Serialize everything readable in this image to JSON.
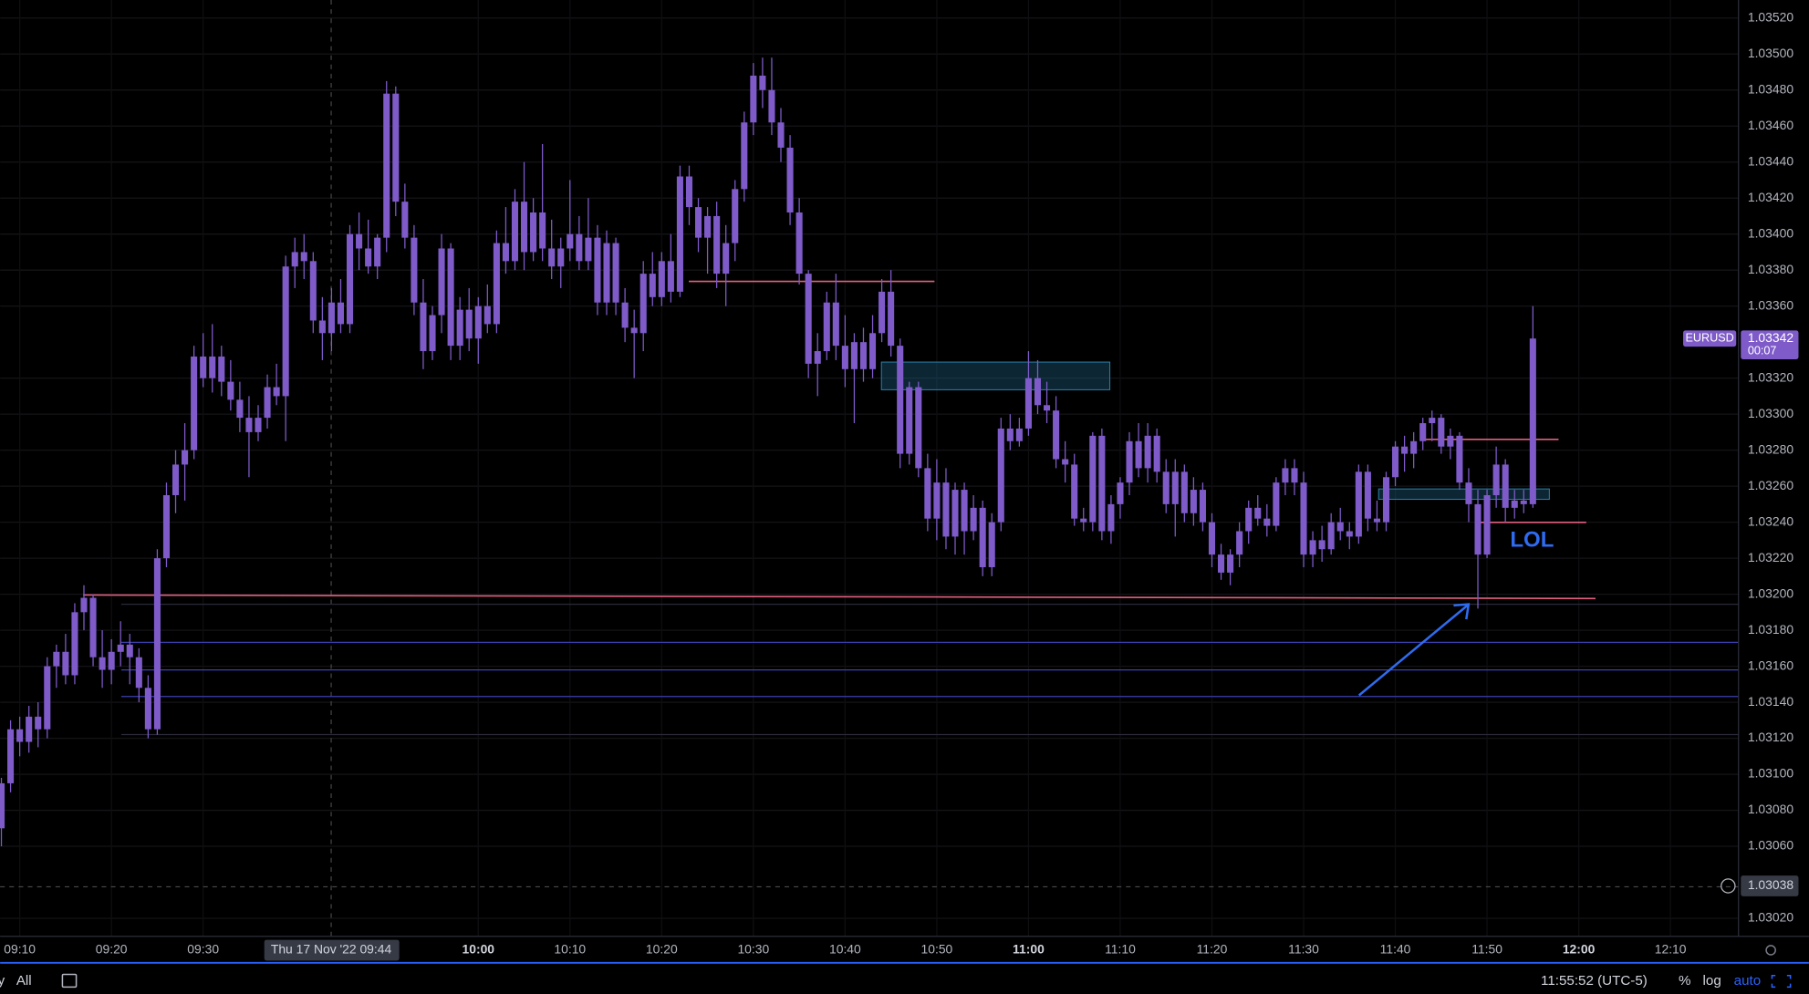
{
  "chart_data": {
    "type": "candlestick",
    "symbol": "EURUSD",
    "color": "#7e5bc9",
    "grid": true,
    "ylim": [
      1.0301,
      1.0353
    ],
    "yticks": [
      {
        "value": 1.0352,
        "label": "1.03520"
      },
      {
        "value": 1.035,
        "label": "1.03500"
      },
      {
        "value": 1.0348,
        "label": "1.03480"
      },
      {
        "value": 1.0346,
        "label": "1.03460"
      },
      {
        "value": 1.0344,
        "label": "1.03440"
      },
      {
        "value": 1.0342,
        "label": "1.03420"
      },
      {
        "value": 1.034,
        "label": "1.03400"
      },
      {
        "value": 1.0338,
        "label": "1.03380"
      },
      {
        "value": 1.0336,
        "label": "1.03360"
      },
      {
        "value": 1.0332,
        "label": "1.03320"
      },
      {
        "value": 1.033,
        "label": "1.03300"
      },
      {
        "value": 1.0328,
        "label": "1.03280"
      },
      {
        "value": 1.0326,
        "label": "1.03260"
      },
      {
        "value": 1.0324,
        "label": "1.03240"
      },
      {
        "value": 1.0322,
        "label": "1.03220"
      },
      {
        "value": 1.032,
        "label": "1.03200"
      },
      {
        "value": 1.0318,
        "label": "1.03180"
      },
      {
        "value": 1.0316,
        "label": "1.03160"
      },
      {
        "value": 1.0314,
        "label": "1.03140"
      },
      {
        "value": 1.0312,
        "label": "1.03120"
      },
      {
        "value": 1.031,
        "label": "1.03100"
      },
      {
        "value": 1.0308,
        "label": "1.03080"
      },
      {
        "value": 1.0306,
        "label": "1.03060"
      },
      {
        "value": 1.0302,
        "label": "1.03020"
      }
    ],
    "xticks": [
      "09:10",
      "09:20",
      "09:30",
      "10:00",
      "10:10",
      "10:20",
      "10:30",
      "10:40",
      "10:50",
      "11:00",
      "11:10",
      "11:20",
      "11:30",
      "11:40",
      "11:50",
      "12:00",
      "12:10"
    ],
    "last_price": 1.03342,
    "countdown": "00:07",
    "crosshair_price": 1.03038,
    "crosshair_time": "Thu 17 Nov '22  09:44",
    "annotation": "LOL",
    "ohlc": [
      [
        1.0307,
        1.03098,
        1.0306,
        1.03095
      ],
      [
        1.03095,
        1.0313,
        1.0309,
        1.03125
      ],
      [
        1.03125,
        1.03132,
        1.0311,
        1.03118
      ],
      [
        1.03118,
        1.03138,
        1.03112,
        1.03132
      ],
      [
        1.03132,
        1.0314,
        1.03115,
        1.03125
      ],
      [
        1.03125,
        1.03165,
        1.0312,
        1.0316
      ],
      [
        1.0316,
        1.03172,
        1.03148,
        1.03168
      ],
      [
        1.03168,
        1.03178,
        1.0315,
        1.03155
      ],
      [
        1.03155,
        1.03195,
        1.0315,
        1.0319
      ],
      [
        1.0319,
        1.03205,
        1.0318,
        1.03198
      ],
      [
        1.03198,
        1.032,
        1.0316,
        1.03165
      ],
      [
        1.03165,
        1.0318,
        1.03148,
        1.03158
      ],
      [
        1.03158,
        1.03175,
        1.0315,
        1.03168
      ],
      [
        1.03168,
        1.03185,
        1.0316,
        1.03172
      ],
      [
        1.03172,
        1.03178,
        1.0315,
        1.03165
      ],
      [
        1.03165,
        1.0317,
        1.0314,
        1.03148
      ],
      [
        1.03148,
        1.03155,
        1.0312,
        1.03125
      ],
      [
        1.03125,
        1.03225,
        1.03122,
        1.0322
      ],
      [
        1.0322,
        1.03262,
        1.03215,
        1.03255
      ],
      [
        1.03255,
        1.0328,
        1.03245,
        1.03272
      ],
      [
        1.03272,
        1.03295,
        1.03252,
        1.0328
      ],
      [
        1.0328,
        1.03338,
        1.03275,
        1.03332
      ],
      [
        1.03332,
        1.03345,
        1.03315,
        1.0332
      ],
      [
        1.0332,
        1.0335,
        1.03312,
        1.03332
      ],
      [
        1.03332,
        1.03338,
        1.0331,
        1.03318
      ],
      [
        1.03318,
        1.0333,
        1.03302,
        1.03308
      ],
      [
        1.03308,
        1.03318,
        1.0329,
        1.03298
      ],
      [
        1.03298,
        1.0331,
        1.03265,
        1.0329
      ],
      [
        1.0329,
        1.03305,
        1.03285,
        1.03298
      ],
      [
        1.03298,
        1.03322,
        1.03292,
        1.03315
      ],
      [
        1.03315,
        1.03328,
        1.03305,
        1.0331
      ],
      [
        1.0331,
        1.03388,
        1.03285,
        1.03382
      ],
      [
        1.03382,
        1.03398,
        1.0337,
        1.0339
      ],
      [
        1.0339,
        1.034,
        1.03375,
        1.03385
      ],
      [
        1.03385,
        1.0339,
        1.03345,
        1.03352
      ],
      [
        1.03352,
        1.03365,
        1.0333,
        1.03345
      ],
      [
        1.03345,
        1.0337,
        1.03335,
        1.03362
      ],
      [
        1.03362,
        1.03375,
        1.03345,
        1.0335
      ],
      [
        1.0335,
        1.03405,
        1.03345,
        1.034
      ],
      [
        1.034,
        1.03412,
        1.0338,
        1.03392
      ],
      [
        1.03392,
        1.03408,
        1.03378,
        1.03382
      ],
      [
        1.03382,
        1.034,
        1.03375,
        1.03398
      ],
      [
        1.03398,
        1.03485,
        1.0339,
        1.03478
      ],
      [
        1.03478,
        1.03482,
        1.0341,
        1.03418
      ],
      [
        1.03418,
        1.03428,
        1.03392,
        1.03398
      ],
      [
        1.03398,
        1.03405,
        1.03355,
        1.03362
      ],
      [
        1.03362,
        1.03375,
        1.03325,
        1.03335
      ],
      [
        1.03335,
        1.0336,
        1.0333,
        1.03355
      ],
      [
        1.03355,
        1.034,
        1.03345,
        1.03392
      ],
      [
        1.03392,
        1.03395,
        1.0333,
        1.03338
      ],
      [
        1.03338,
        1.03365,
        1.0333,
        1.03358
      ],
      [
        1.03358,
        1.0337,
        1.03335,
        1.03342
      ],
      [
        1.03342,
        1.03365,
        1.03328,
        1.0336
      ],
      [
        1.0336,
        1.03372,
        1.03345,
        1.0335
      ],
      [
        1.0335,
        1.03402,
        1.03345,
        1.03395
      ],
      [
        1.03395,
        1.03415,
        1.03378,
        1.03385
      ],
      [
        1.03385,
        1.03425,
        1.0338,
        1.03418
      ],
      [
        1.03418,
        1.0344,
        1.0338,
        1.0339
      ],
      [
        1.0339,
        1.0342,
        1.03385,
        1.03412
      ],
      [
        1.03412,
        1.0345,
        1.03385,
        1.03392
      ],
      [
        1.03392,
        1.03408,
        1.03375,
        1.03382
      ],
      [
        1.03382,
        1.03398,
        1.0337,
        1.03392
      ],
      [
        1.03392,
        1.0343,
        1.03385,
        1.034
      ],
      [
        1.034,
        1.0341,
        1.0338,
        1.03385
      ],
      [
        1.03385,
        1.0342,
        1.0338,
        1.03398
      ],
      [
        1.03398,
        1.03405,
        1.03355,
        1.03362
      ],
      [
        1.03362,
        1.03402,
        1.03355,
        1.03395
      ],
      [
        1.03395,
        1.03398,
        1.03355,
        1.03362
      ],
      [
        1.03362,
        1.0337,
        1.0334,
        1.03348
      ],
      [
        1.03348,
        1.03358,
        1.0332,
        1.03345
      ],
      [
        1.03345,
        1.03385,
        1.03335,
        1.03378
      ],
      [
        1.03378,
        1.0339,
        1.0336,
        1.03365
      ],
      [
        1.03365,
        1.0339,
        1.0336,
        1.03385
      ],
      [
        1.03385,
        1.034,
        1.03362,
        1.03368
      ],
      [
        1.03368,
        1.03438,
        1.03365,
        1.03432
      ],
      [
        1.03432,
        1.03438,
        1.03405,
        1.03415
      ],
      [
        1.03415,
        1.0342,
        1.0339,
        1.03398
      ],
      [
        1.03398,
        1.03415,
        1.03378,
        1.0341
      ],
      [
        1.0341,
        1.03418,
        1.0337,
        1.03378
      ],
      [
        1.03378,
        1.03405,
        1.0336,
        1.03395
      ],
      [
        1.03395,
        1.0343,
        1.03385,
        1.03425
      ],
      [
        1.03425,
        1.03468,
        1.03418,
        1.03462
      ],
      [
        1.03462,
        1.03495,
        1.03455,
        1.03488
      ],
      [
        1.03488,
        1.03498,
        1.0347,
        1.0348
      ],
      [
        1.0348,
        1.03498,
        1.03455,
        1.03462
      ],
      [
        1.03462,
        1.0347,
        1.0344,
        1.03448
      ],
      [
        1.03448,
        1.03455,
        1.03405,
        1.03412
      ],
      [
        1.03412,
        1.0342,
        1.03372,
        1.03378
      ],
      [
        1.03378,
        1.0338,
        1.0332,
        1.03328
      ],
      [
        1.03328,
        1.03345,
        1.0331,
        1.03335
      ],
      [
        1.03335,
        1.03368,
        1.0333,
        1.03362
      ],
      [
        1.03362,
        1.03378,
        1.0333,
        1.03338
      ],
      [
        1.03338,
        1.03355,
        1.03315,
        1.03325
      ],
      [
        1.03325,
        1.03345,
        1.03295,
        1.0334
      ],
      [
        1.0334,
        1.03348,
        1.03318,
        1.03325
      ],
      [
        1.03325,
        1.03355,
        1.0332,
        1.03345
      ],
      [
        1.03345,
        1.03375,
        1.0334,
        1.03368
      ],
      [
        1.03368,
        1.0338,
        1.03332,
        1.03338
      ],
      [
        1.03338,
        1.03342,
        1.0327,
        1.03278
      ],
      [
        1.03278,
        1.03318,
        1.03272,
        1.03315
      ],
      [
        1.03315,
        1.03318,
        1.03265,
        1.0327
      ],
      [
        1.0327,
        1.03278,
        1.03235,
        1.03242
      ],
      [
        1.03242,
        1.03275,
        1.0323,
        1.03262
      ],
      [
        1.03262,
        1.0327,
        1.03225,
        1.03232
      ],
      [
        1.03232,
        1.03262,
        1.03222,
        1.03258
      ],
      [
        1.03258,
        1.03262,
        1.03222,
        1.03235
      ],
      [
        1.03235,
        1.03255,
        1.0323,
        1.03248
      ],
      [
        1.03248,
        1.03252,
        1.0321,
        1.03215
      ],
      [
        1.03215,
        1.03245,
        1.0321,
        1.0324
      ],
      [
        1.0324,
        1.03298,
        1.03235,
        1.03292
      ],
      [
        1.03292,
        1.033,
        1.0328,
        1.03285
      ],
      [
        1.03285,
        1.03298,
        1.03282,
        1.03292
      ],
      [
        1.03292,
        1.03335,
        1.03288,
        1.0332
      ],
      [
        1.0332,
        1.0333,
        1.033,
        1.03305
      ],
      [
        1.03305,
        1.03318,
        1.03295,
        1.03302
      ],
      [
        1.03302,
        1.0331,
        1.0327,
        1.03275
      ],
      [
        1.03275,
        1.03285,
        1.03262,
        1.03272
      ],
      [
        1.03272,
        1.03278,
        1.03238,
        1.03242
      ],
      [
        1.03242,
        1.03248,
        1.03235,
        1.0324
      ],
      [
        1.0324,
        1.0329,
        1.03235,
        1.03288
      ],
      [
        1.03288,
        1.03292,
        1.0323,
        1.03235
      ],
      [
        1.03235,
        1.03255,
        1.03228,
        1.0325
      ],
      [
        1.0325,
        1.03265,
        1.03242,
        1.03262
      ],
      [
        1.03262,
        1.0329,
        1.03255,
        1.03285
      ],
      [
        1.03285,
        1.03295,
        1.03265,
        1.0327
      ],
      [
        1.0327,
        1.03295,
        1.03262,
        1.03288
      ],
      [
        1.03288,
        1.03292,
        1.03262,
        1.03268
      ],
      [
        1.03268,
        1.03275,
        1.03245,
        1.0325
      ],
      [
        1.0325,
        1.03275,
        1.03232,
        1.03268
      ],
      [
        1.03268,
        1.03272,
        1.0324,
        1.03245
      ],
      [
        1.03245,
        1.03265,
        1.03238,
        1.03258
      ],
      [
        1.03258,
        1.03262,
        1.03235,
        1.0324
      ],
      [
        1.0324,
        1.03245,
        1.03215,
        1.03222
      ],
      [
        1.03222,
        1.03228,
        1.03208,
        1.03212
      ],
      [
        1.03212,
        1.03225,
        1.03205,
        1.03222
      ],
      [
        1.03222,
        1.0324,
        1.03215,
        1.03235
      ],
      [
        1.03235,
        1.03252,
        1.03228,
        1.03248
      ],
      [
        1.03248,
        1.03255,
        1.03238,
        1.03242
      ],
      [
        1.03242,
        1.0325,
        1.03232,
        1.03238
      ],
      [
        1.03238,
        1.03265,
        1.03235,
        1.03262
      ],
      [
        1.03262,
        1.03275,
        1.03255,
        1.0327
      ],
      [
        1.0327,
        1.03275,
        1.03255,
        1.03262
      ],
      [
        1.03262,
        1.03268,
        1.03215,
        1.03222
      ],
      [
        1.03222,
        1.03235,
        1.03215,
        1.0323
      ],
      [
        1.0323,
        1.03238,
        1.03218,
        1.03225
      ],
      [
        1.03225,
        1.03245,
        1.03222,
        1.0324
      ],
      [
        1.0324,
        1.03248,
        1.0323,
        1.03235
      ],
      [
        1.03235,
        1.0324,
        1.03225,
        1.03232
      ],
      [
        1.03232,
        1.03272,
        1.03228,
        1.03268
      ],
      [
        1.03268,
        1.03272,
        1.03235,
        1.03242
      ],
      [
        1.03242,
        1.03252,
        1.03235,
        1.0324
      ],
      [
        1.0324,
        1.03268,
        1.03235,
        1.03265
      ],
      [
        1.03265,
        1.03285,
        1.0326,
        1.03282
      ],
      [
        1.03282,
        1.03288,
        1.03268,
        1.03278
      ],
      [
        1.03278,
        1.0329,
        1.0327,
        1.03285
      ],
      [
        1.03285,
        1.03298,
        1.0328,
        1.03295
      ],
      [
        1.03295,
        1.03302,
        1.03285,
        1.03298
      ],
      [
        1.03298,
        1.033,
        1.03278,
        1.03282
      ],
      [
        1.03282,
        1.03292,
        1.03275,
        1.03288
      ],
      [
        1.03288,
        1.0329,
        1.03258,
        1.03262
      ],
      [
        1.03262,
        1.0327,
        1.0324,
        1.0325
      ],
      [
        1.0325,
        1.03258,
        1.03192,
        1.03222
      ],
      [
        1.03222,
        1.03258,
        1.0322,
        1.03255
      ],
      [
        1.03255,
        1.03282,
        1.03248,
        1.03272
      ],
      [
        1.03272,
        1.03275,
        1.0324,
        1.03248
      ],
      [
        1.03248,
        1.03258,
        1.03242,
        1.03252
      ],
      [
        1.03252,
        1.03258,
        1.03245,
        1.0325
      ],
      [
        1.0325,
        1.0336,
        1.03248,
        1.03342
      ]
    ]
  },
  "toolbar": {
    "ranges": [
      "y",
      "All"
    ],
    "clock": "11:55:52 (UTC-5)",
    "options": [
      "%",
      "log",
      "auto"
    ]
  }
}
